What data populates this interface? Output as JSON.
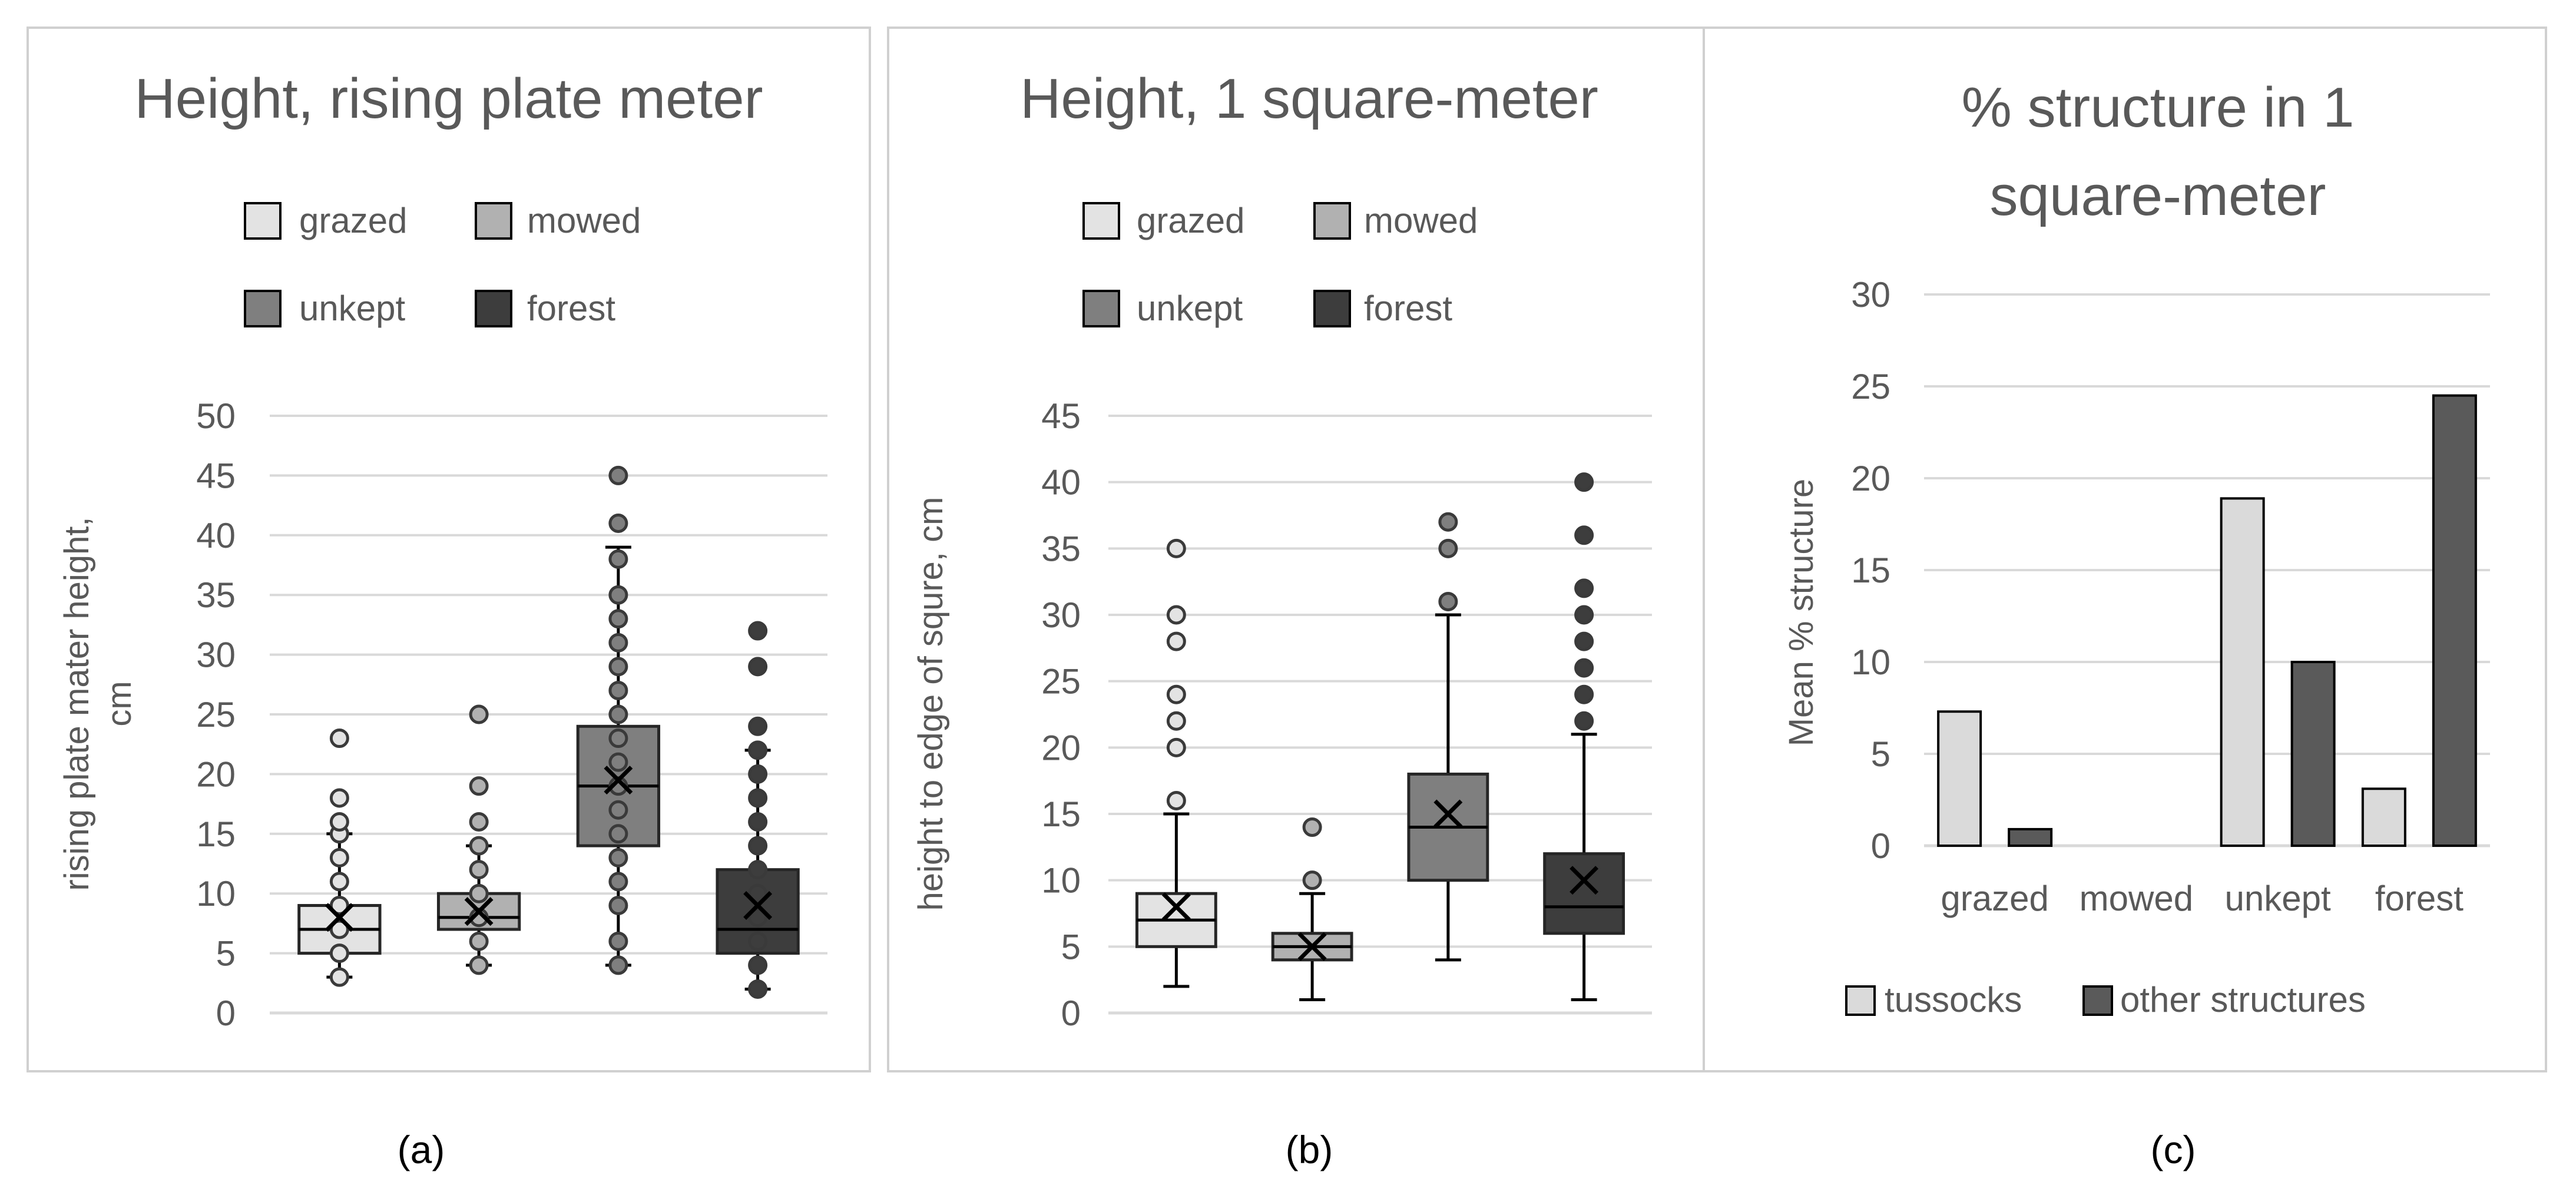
{
  "colors": {
    "grazed": "#e3e3e3",
    "mowed": "#b1b1b1",
    "unkept": "#7f7f7f",
    "forest": "#3d3d3d",
    "tussocks": "#dadada",
    "other_structures": "#5a5a5a"
  },
  "captions": [
    "(a)",
    "(b)",
    "(c)"
  ],
  "chart_data": [
    {
      "type": "box",
      "title": "Height, rising plate meter",
      "ylabel_lines": [
        "rising plate mater height,",
        "cm"
      ],
      "xlabel": "",
      "ylim": [
        0,
        50
      ],
      "yticks": [
        0,
        5,
        10,
        15,
        20,
        25,
        30,
        35,
        40,
        45,
        50
      ],
      "legend": [
        "grazed",
        "mowed",
        "unkept",
        "forest"
      ],
      "groups": [
        {
          "name": "grazed",
          "min": 3,
          "q1": 5,
          "median": 7,
          "q3": 9,
          "max": 15,
          "mean": 8,
          "outliers": [
            3,
            5,
            7,
            9,
            11,
            13,
            15,
            16,
            18,
            23
          ]
        },
        {
          "name": "mowed",
          "min": 4,
          "q1": 7,
          "median": 8,
          "q3": 10,
          "max": 14,
          "mean": 8.5,
          "outliers": [
            4,
            6,
            8,
            10,
            12,
            14,
            16,
            19,
            25
          ]
        },
        {
          "name": "unkept",
          "min": 4,
          "q1": 14,
          "median": 19,
          "q3": 24,
          "max": 39,
          "mean": 19.5,
          "outliers": [
            4,
            6,
            9,
            11,
            13,
            15,
            17,
            19,
            21,
            23,
            25,
            27,
            29,
            31,
            33,
            35,
            38,
            41,
            45
          ]
        },
        {
          "name": "forest",
          "min": 2,
          "q1": 5,
          "median": 7,
          "q3": 12,
          "max": 22,
          "mean": 9,
          "outliers": [
            2,
            4,
            6,
            8,
            10,
            12,
            14,
            16,
            18,
            20,
            22,
            24,
            29,
            32
          ]
        }
      ]
    },
    {
      "type": "box",
      "title": "Height, 1 square-meter",
      "ylabel_lines": [
        "height to edge of squre, cm"
      ],
      "xlabel": "",
      "ylim": [
        0,
        45
      ],
      "yticks": [
        0,
        5,
        10,
        15,
        20,
        25,
        30,
        35,
        40,
        45
      ],
      "legend": [
        "grazed",
        "mowed",
        "unkept",
        "forest"
      ],
      "groups": [
        {
          "name": "grazed",
          "min": 2,
          "q1": 5,
          "median": 7,
          "q3": 9,
          "max": 15,
          "mean": 8,
          "outliers": [
            16,
            20,
            22,
            24,
            28,
            30,
            35
          ]
        },
        {
          "name": "mowed",
          "min": 1,
          "q1": 4,
          "median": 5,
          "q3": 6,
          "max": 9,
          "mean": 5,
          "outliers": [
            10,
            14
          ]
        },
        {
          "name": "unkept",
          "min": 4,
          "q1": 10,
          "median": 14,
          "q3": 18,
          "max": 30,
          "mean": 15,
          "outliers": [
            31,
            35,
            37
          ]
        },
        {
          "name": "forest",
          "min": 1,
          "q1": 6,
          "median": 8,
          "q3": 12,
          "max": 21,
          "mean": 10,
          "outliers": [
            22,
            24,
            26,
            28,
            30,
            32,
            36,
            40
          ]
        }
      ]
    },
    {
      "type": "bar",
      "title_lines": [
        "% structure in 1",
        "square-meter"
      ],
      "ylabel": "Mean % structure",
      "xlabel": "",
      "ylim": [
        0,
        30
      ],
      "yticks": [
        0,
        5,
        10,
        15,
        20,
        25,
        30
      ],
      "categories": [
        "grazed",
        "mowed",
        "unkept",
        "forest"
      ],
      "series": [
        {
          "name": "tussocks",
          "values": [
            7.3,
            0,
            18.9,
            3.1
          ]
        },
        {
          "name": "other structures",
          "values": [
            0.9,
            0,
            10,
            24.5
          ]
        }
      ]
    }
  ]
}
